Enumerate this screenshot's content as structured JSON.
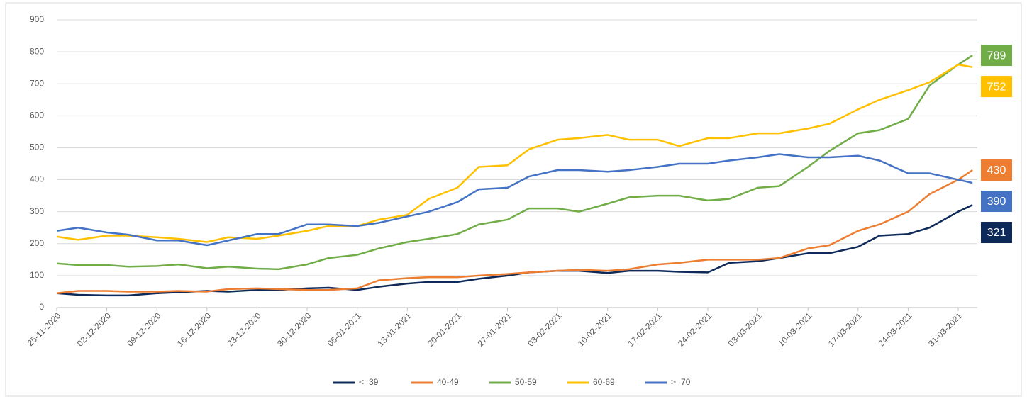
{
  "chart_data": {
    "type": "line",
    "x": [
      "25-11-2020",
      "28-11-2020",
      "02-12-2020",
      "05-12-2020",
      "09-12-2020",
      "12-12-2020",
      "16-12-2020",
      "19-12-2020",
      "23-12-2020",
      "26-12-2020",
      "30-12-2020",
      "02-01-2021",
      "06-01-2021",
      "09-01-2021",
      "13-01-2021",
      "16-01-2021",
      "20-01-2021",
      "23-01-2021",
      "27-01-2021",
      "30-01-2021",
      "03-02-2021",
      "06-02-2021",
      "10-02-2021",
      "13-02-2021",
      "17-02-2021",
      "20-02-2021",
      "24-02-2021",
      "27-02-2021",
      "03-03-2021",
      "06-03-2021",
      "10-03-2021",
      "13-03-2021",
      "17-03-2021",
      "20-03-2021",
      "24-03-2021",
      "27-03-2021",
      "31-03-2021",
      "02-04-2021"
    ],
    "xticks": [
      "25-11-2020",
      "02-12-2020",
      "09-12-2020",
      "16-12-2020",
      "23-12-2020",
      "30-12-2020",
      "06-01-2021",
      "13-01-2021",
      "20-01-2021",
      "27-01-2021",
      "03-02-2021",
      "10-02-2021",
      "17-02-2021",
      "24-02-2021",
      "03-03-2021",
      "10-03-2021",
      "17-03-2021",
      "24-03-2021",
      "31-03-2021"
    ],
    "series": [
      {
        "name": "<=39",
        "color": "#0e2a5a",
        "values": [
          45,
          40,
          38,
          38,
          45,
          48,
          52,
          50,
          55,
          55,
          60,
          62,
          55,
          65,
          75,
          80,
          80,
          90,
          100,
          110,
          115,
          115,
          108,
          115,
          115,
          112,
          110,
          140,
          145,
          155,
          170,
          170,
          190,
          225,
          230,
          250,
          300,
          321
        ]
      },
      {
        "name": "40-49",
        "color": "#ed7d31",
        "values": [
          45,
          52,
          52,
          50,
          50,
          52,
          50,
          58,
          60,
          58,
          55,
          55,
          60,
          85,
          92,
          95,
          95,
          100,
          105,
          110,
          115,
          118,
          115,
          120,
          135,
          140,
          150,
          150,
          150,
          155,
          185,
          195,
          240,
          260,
          300,
          355,
          400,
          430
        ]
      },
      {
        "name": "50-59",
        "color": "#70ad47",
        "values": [
          138,
          133,
          133,
          128,
          130,
          135,
          123,
          128,
          122,
          120,
          135,
          155,
          165,
          185,
          205,
          215,
          230,
          260,
          275,
          310,
          310,
          300,
          325,
          345,
          350,
          350,
          335,
          340,
          375,
          380,
          440,
          490,
          545,
          555,
          590,
          695,
          760,
          789
        ]
      },
      {
        "name": "60-69",
        "color": "#ffc000",
        "values": [
          222,
          212,
          225,
          225,
          220,
          215,
          205,
          220,
          215,
          225,
          240,
          255,
          255,
          275,
          290,
          340,
          375,
          440,
          445,
          495,
          525,
          530,
          540,
          525,
          525,
          505,
          530,
          530,
          545,
          545,
          560,
          575,
          620,
          650,
          680,
          705,
          760,
          752
        ]
      },
      {
        "name": ">=70",
        "color": "#4472c4",
        "values": [
          240,
          250,
          235,
          228,
          210,
          210,
          195,
          210,
          230,
          230,
          260,
          260,
          255,
          265,
          285,
          300,
          330,
          370,
          375,
          410,
          430,
          430,
          425,
          430,
          440,
          450,
          450,
          460,
          470,
          480,
          470,
          470,
          475,
          460,
          420,
          420,
          400,
          390
        ]
      }
    ],
    "ylim": [
      0,
      900
    ],
    "yticks": [
      0,
      100,
      200,
      300,
      400,
      500,
      600,
      700,
      800,
      900
    ],
    "grid": true,
    "legend": "bottom",
    "end_labels": true
  }
}
